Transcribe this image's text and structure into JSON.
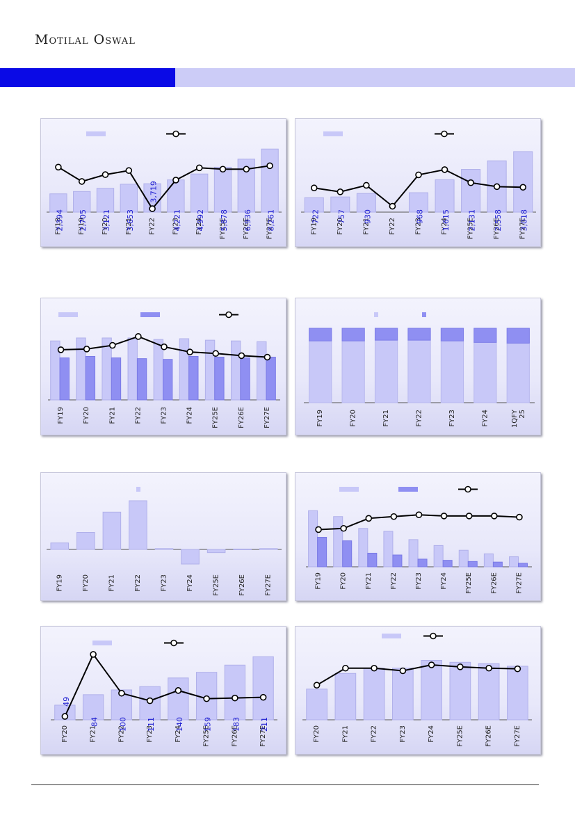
{
  "header": {
    "brand": "Motilal Oswal"
  },
  "colors": {
    "banner_dark": "#0a0ae6",
    "banner_light": "#ccccf7",
    "bar_light": "#c8c8f8",
    "bar_dark": "#8f8ff2",
    "line": "#000000"
  },
  "chart_data": [
    {
      "id": "c1",
      "type": "bar+line",
      "categories": [
        "FY18",
        "FY19",
        "FY20",
        "FY21",
        "FY22",
        "FY23",
        "FY24",
        "FY25E",
        "FY26E",
        "FY27E"
      ],
      "values": [
        2394,
        2705,
        3121,
        3653,
        3719,
        4221,
        4992,
        5878,
        6936,
        8261
      ],
      "value_labels": [
        "2,394",
        "2,705",
        "3,121",
        "3,653",
        "3,719",
        "4,221",
        "4,992",
        "5,878",
        "6,936",
        "8,261"
      ],
      "line_values": [
        0.66,
        0.45,
        0.55,
        0.61,
        0.05,
        0.47,
        0.65,
        0.63,
        0.63,
        0.68
      ]
    },
    {
      "id": "c2",
      "type": "bar+line",
      "categories": [
        "FY19",
        "FY20",
        "FY21",
        "FY22",
        "FY23",
        "FY24",
        "FY25E",
        "FY26E",
        "FY27E"
      ],
      "values": [
        722,
        757,
        930,
        null,
        968,
        1615,
        2131,
        2558,
        3018
      ],
      "value_labels": [
        "722",
        "757",
        "930",
        "",
        "968",
        "1,615",
        "2,131",
        "2,558",
        "3,018"
      ],
      "line_values": [
        0.37,
        0.31,
        0.41,
        0.09,
        0.57,
        0.65,
        0.45,
        0.39,
        0.38
      ]
    },
    {
      "id": "c3",
      "type": "bar+line",
      "categories": [
        "FY19",
        "FY20",
        "FY21",
        "FY22",
        "FY23",
        "FY24",
        "FY25E",
        "FY26E",
        "FY27E"
      ],
      "series": [
        {
          "values": [
            0.8,
            0.84,
            0.84,
            0.84,
            0.82,
            0.83,
            0.81,
            0.8,
            0.79
          ]
        },
        {
          "values": [
            0.57,
            0.59,
            0.57,
            0.56,
            0.55,
            0.59,
            0.58,
            0.57,
            0.58
          ]
        }
      ],
      "line_values": [
        0.68,
        0.69,
        0.74,
        0.86,
        0.72,
        0.65,
        0.63,
        0.6,
        0.58
      ]
    },
    {
      "id": "c4",
      "type": "stacked bar",
      "categories": [
        "FY19",
        "FY20",
        "FY21",
        "FY22",
        "FY23",
        "FY24",
        "1QFY 25"
      ],
      "series": [
        {
          "values": [
            0.83,
            0.83,
            0.84,
            0.84,
            0.83,
            0.81,
            0.8
          ]
        },
        {
          "values": [
            0.17,
            0.17,
            0.16,
            0.16,
            0.17,
            0.19,
            0.2
          ]
        }
      ]
    },
    {
      "id": "c5",
      "type": "bar",
      "categories": [
        "FY19",
        "FY20",
        "FY21",
        "FY22",
        "FY23",
        "FY24",
        "FY25E",
        "FY26E",
        "FY27E"
      ],
      "values": [
        8,
        21,
        46,
        60,
        1,
        -18,
        -4,
        0.5,
        1
      ]
    },
    {
      "id": "c6",
      "type": "bar+line",
      "categories": [
        "FY19",
        "FY20",
        "FY21",
        "FY22",
        "FY23",
        "FY24",
        "FY25E",
        "FY26E",
        "FY27E"
      ],
      "series": [
        {
          "values": [
            0.95,
            0.85,
            0.65,
            0.6,
            0.46,
            0.36,
            0.28,
            0.22,
            0.17
          ]
        },
        {
          "values": [
            0.5,
            0.44,
            0.23,
            0.2,
            0.13,
            0.11,
            0.09,
            0.08,
            0.06
          ]
        }
      ],
      "line_values": [
        0.63,
        0.65,
        0.82,
        0.85,
        0.88,
        0.86,
        0.86,
        0.86,
        0.84
      ]
    },
    {
      "id": "c7",
      "type": "bar+line",
      "categories": [
        "FY20",
        "FY21",
        "FY22",
        "FY23",
        "FY24",
        "FY25E",
        "FY26E",
        "FY27E"
      ],
      "values": [
        49,
        84,
        100,
        111,
        140,
        159,
        183,
        211
      ],
      "value_labels": [
        "49",
        "84",
        "100",
        "111",
        "140",
        "159",
        "183",
        "211"
      ],
      "line_values": [
        0.05,
        0.96,
        0.39,
        0.28,
        0.43,
        0.31,
        0.32,
        0.33
      ]
    },
    {
      "id": "c8",
      "type": "bar+line",
      "categories": [
        "FY20",
        "FY21",
        "FY22",
        "FY23",
        "FY24",
        "FY25E",
        "FY26E",
        "FY27E"
      ],
      "values": [
        0.47,
        0.71,
        0.79,
        0.79,
        0.91,
        0.88,
        0.86,
        0.82
      ],
      "line_values": [
        0.53,
        0.79,
        0.79,
        0.75,
        0.84,
        0.81,
        0.79,
        0.78
      ]
    }
  ]
}
